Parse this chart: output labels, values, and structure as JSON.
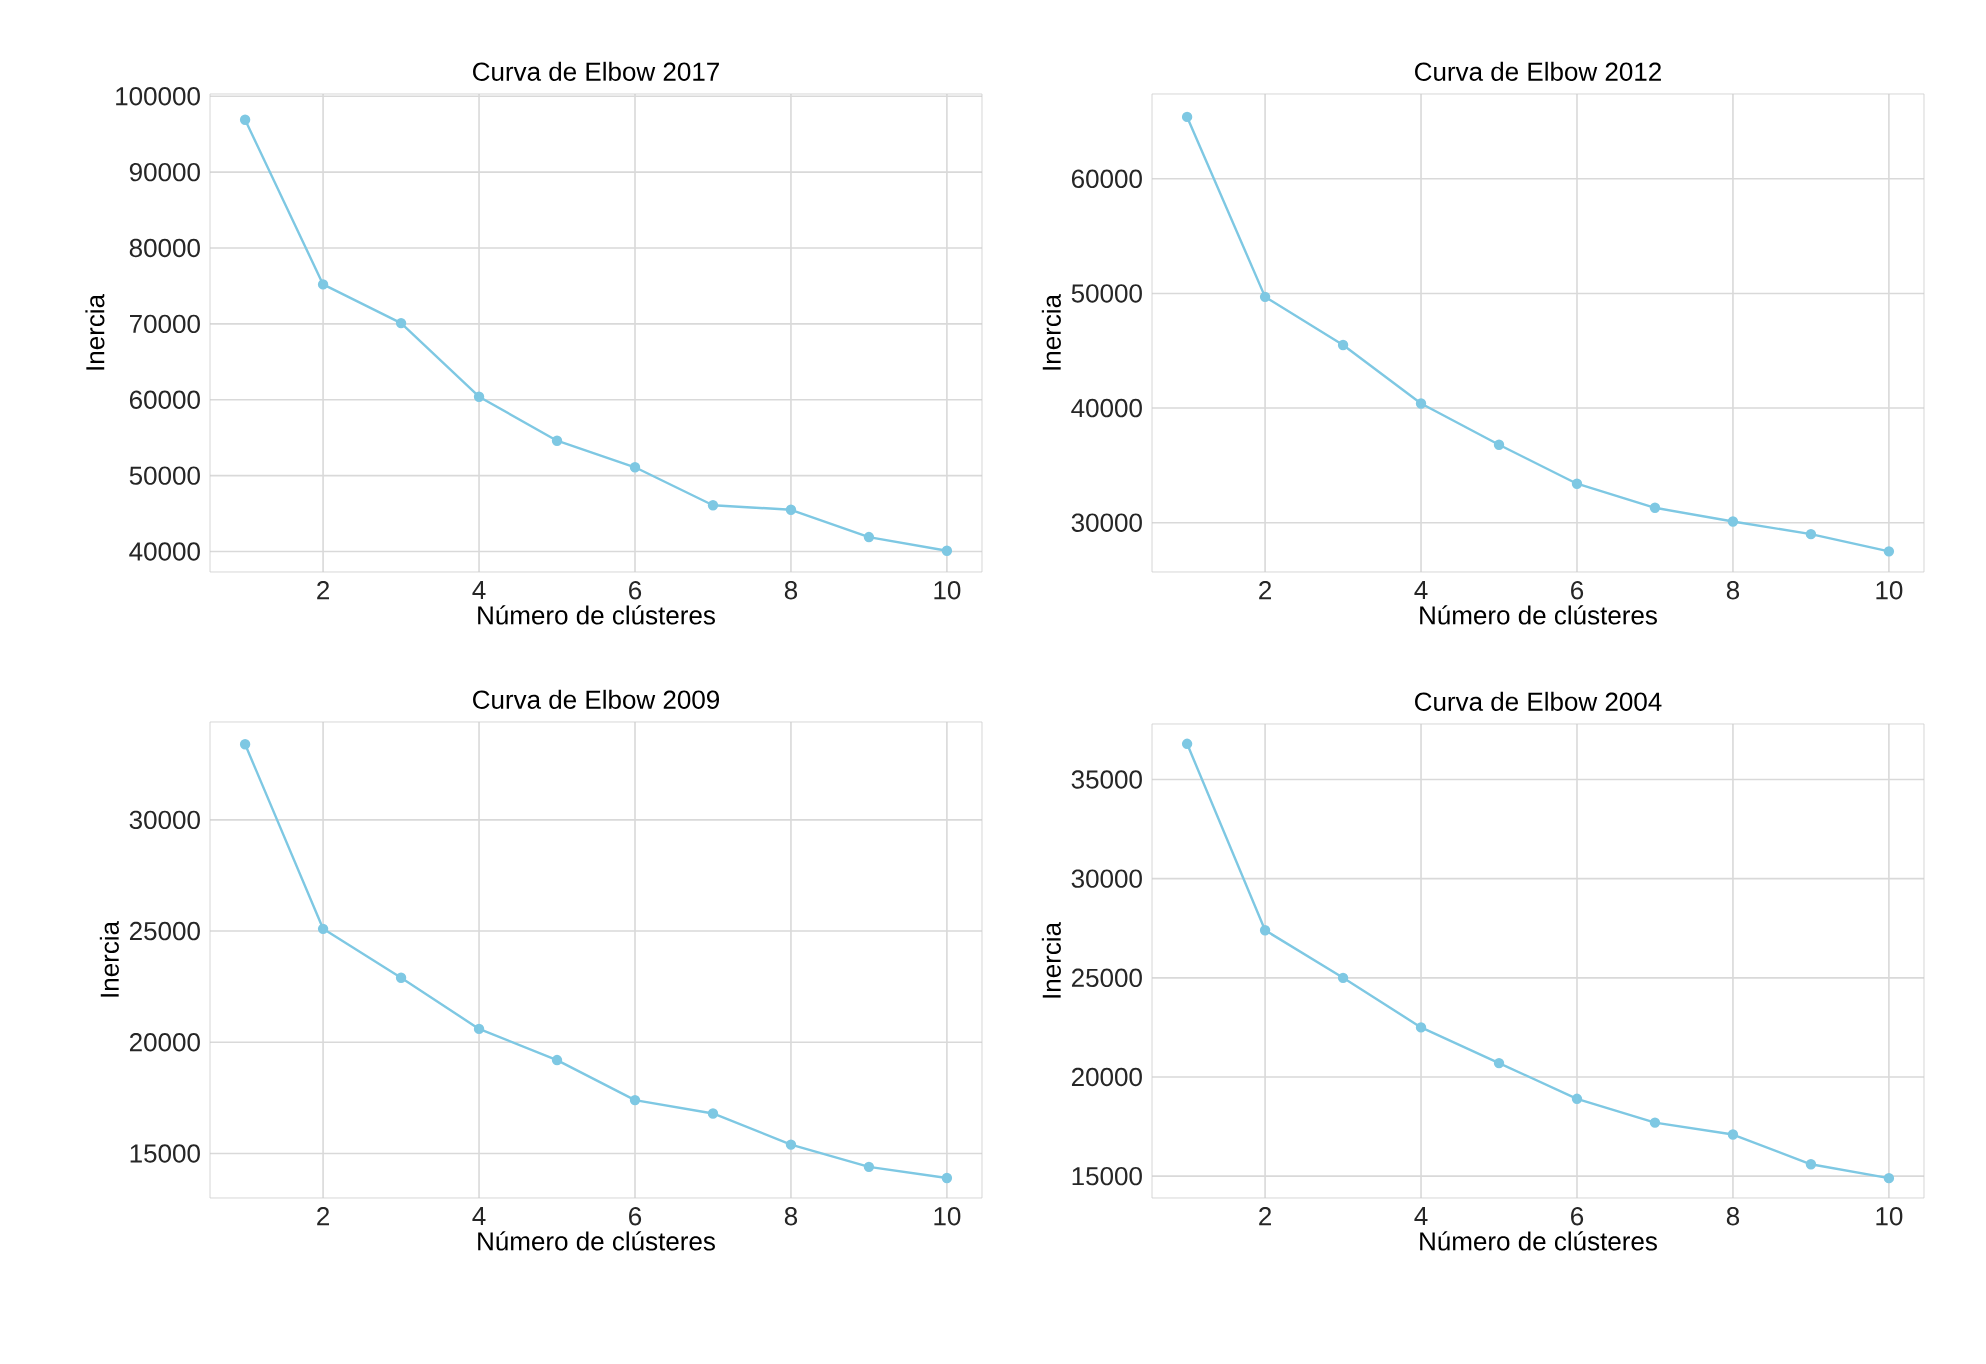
{
  "chart_data": [
    {
      "type": "line",
      "title": "Curva de Elbow 2017",
      "xlabel": "Número de clústeres",
      "ylabel": "Inercia",
      "x": [
        1,
        2,
        3,
        4,
        5,
        6,
        7,
        8,
        9,
        10
      ],
      "series": [
        {
          "color": "#7ec8e3",
          "values": [
            96900,
            75200,
            70100,
            60400,
            54600,
            51100,
            46100,
            45500,
            41900,
            40100
          ]
        }
      ],
      "xlim": [
        0.55,
        10.45
      ],
      "ylim": [
        37300,
        100300
      ],
      "xticks": [
        2,
        4,
        6,
        8,
        10
      ],
      "yticks": [
        40000,
        50000,
        60000,
        70000,
        80000,
        90000,
        100000
      ],
      "grid": true,
      "marker": "circle"
    },
    {
      "type": "line",
      "title": "Curva de Elbow 2012",
      "xlabel": "Número de clústeres",
      "ylabel": "Inercia",
      "x": [
        1,
        2,
        3,
        4,
        5,
        6,
        7,
        8,
        9,
        10
      ],
      "series": [
        {
          "color": "#7ec8e3",
          "values": [
            65400,
            49700,
            45500,
            40400,
            36800,
            33400,
            31300,
            30100,
            29000,
            27500
          ]
        }
      ],
      "xlim": [
        0.55,
        10.45
      ],
      "ylim": [
        25700,
        67400
      ],
      "xticks": [
        2,
        4,
        6,
        8,
        10
      ],
      "yticks": [
        30000,
        40000,
        50000,
        60000
      ],
      "grid": true,
      "marker": "circle"
    },
    {
      "type": "line",
      "title": "Curva de Elbow 2009",
      "xlabel": "Número de clústeres",
      "ylabel": "Inercia",
      "x": [
        1,
        2,
        3,
        4,
        5,
        6,
        7,
        8,
        9,
        10
      ],
      "series": [
        {
          "color": "#7ec8e3",
          "values": [
            33400,
            25100,
            22900,
            20600,
            19200,
            17400,
            16800,
            15400,
            14400,
            13900
          ]
        }
      ],
      "xlim": [
        0.55,
        10.45
      ],
      "ylim": [
        13000,
        34400
      ],
      "xticks": [
        2,
        4,
        6,
        8,
        10
      ],
      "yticks": [
        15000,
        20000,
        25000,
        30000
      ],
      "grid": true,
      "marker": "circle"
    },
    {
      "type": "line",
      "title": "Curva de Elbow 2004",
      "xlabel": "Número de clústeres",
      "ylabel": "Inercia",
      "x": [
        1,
        2,
        3,
        4,
        5,
        6,
        7,
        8,
        9,
        10
      ],
      "series": [
        {
          "color": "#7ec8e3",
          "values": [
            36800,
            27400,
            25000,
            22500,
            20700,
            18900,
            17700,
            17100,
            15600,
            14900
          ]
        }
      ],
      "xlim": [
        0.55,
        10.45
      ],
      "ylim": [
        13900,
        37800
      ],
      "xticks": [
        2,
        4,
        6,
        8,
        10
      ],
      "yticks": [
        15000,
        20000,
        25000,
        30000,
        35000
      ],
      "grid": true,
      "marker": "circle"
    }
  ]
}
